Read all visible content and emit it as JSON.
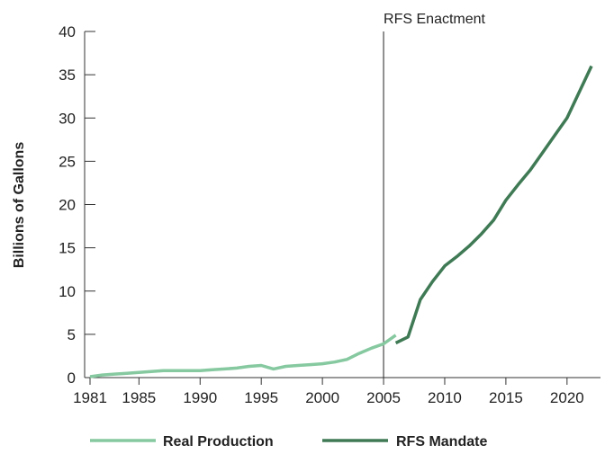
{
  "chart_data": {
    "type": "line",
    "xlabel": "",
    "ylabel": "Billions of Gallons",
    "xlim": [
      1981,
      2022
    ],
    "ylim": [
      0,
      40
    ],
    "x_ticks": [
      1981,
      1985,
      1990,
      1995,
      2000,
      2005,
      2010,
      2015,
      2020
    ],
    "y_ticks": [
      0,
      5,
      10,
      15,
      20,
      25,
      30,
      35,
      40
    ],
    "grid": false,
    "legend_position": "bottom",
    "annotations": [
      {
        "x": 2005,
        "text": "RFS Enactment"
      }
    ],
    "series": [
      {
        "name": "Real Production",
        "color": "#86c9a0",
        "points": [
          [
            1981,
            0.1
          ],
          [
            1982,
            0.3
          ],
          [
            1983,
            0.4
          ],
          [
            1984,
            0.5
          ],
          [
            1985,
            0.6
          ],
          [
            1986,
            0.7
          ],
          [
            1987,
            0.8
          ],
          [
            1988,
            0.8
          ],
          [
            1989,
            0.8
          ],
          [
            1990,
            0.8
          ],
          [
            1991,
            0.9
          ],
          [
            1992,
            1.0
          ],
          [
            1993,
            1.1
          ],
          [
            1994,
            1.3
          ],
          [
            1995,
            1.4
          ],
          [
            1996,
            1.0
          ],
          [
            1997,
            1.3
          ],
          [
            1998,
            1.4
          ],
          [
            1999,
            1.5
          ],
          [
            2000,
            1.6
          ],
          [
            2001,
            1.8
          ],
          [
            2002,
            2.1
          ],
          [
            2003,
            2.8
          ],
          [
            2004,
            3.4
          ],
          [
            2005,
            3.9
          ],
          [
            2006,
            4.9
          ]
        ]
      },
      {
        "name": "RFS Mandate",
        "color": "#3f7a55",
        "points": [
          [
            2006,
            4.0
          ],
          [
            2007,
            4.7
          ],
          [
            2008,
            9.0
          ],
          [
            2009,
            11.1
          ],
          [
            2010,
            12.9
          ],
          [
            2011,
            14.0
          ],
          [
            2012,
            15.2
          ],
          [
            2013,
            16.6
          ],
          [
            2014,
            18.2
          ],
          [
            2015,
            20.5
          ],
          [
            2016,
            22.3
          ],
          [
            2017,
            24.0
          ],
          [
            2018,
            26.0
          ],
          [
            2019,
            28.0
          ],
          [
            2020,
            30.0
          ],
          [
            2021,
            33.0
          ],
          [
            2022,
            36.0
          ]
        ]
      }
    ]
  }
}
